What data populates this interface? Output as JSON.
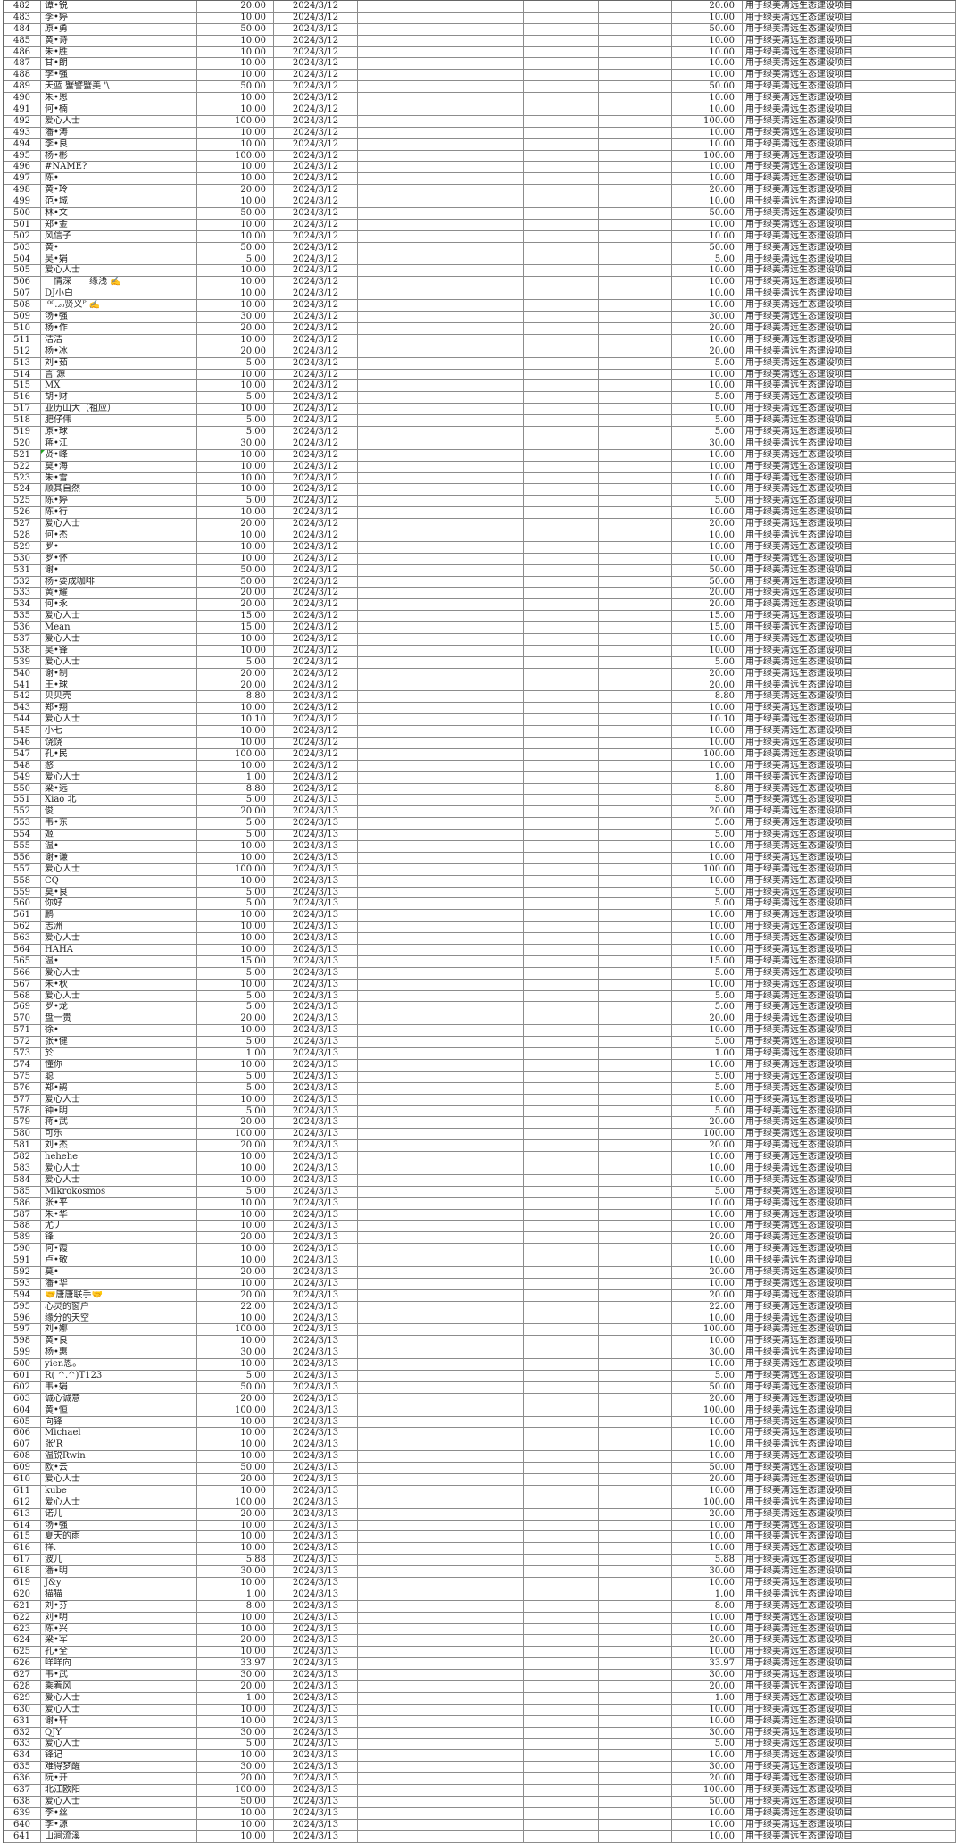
{
  "colors": {
    "grid_line": "#8c8c8c",
    "grid_line_dark": "#666666",
    "text": "#222222",
    "paper": "#ffffff",
    "error_marker_green": "#1fa51f"
  },
  "table": {
    "purpose_text": "用于绿美清远生态建设项目",
    "error_marker_row_no": "521",
    "fields": [
      "no",
      "name",
      "amount",
      "date"
    ],
    "rows": [
      [
        "482",
        "谭•锐",
        "20.00",
        "2024/3/12"
      ],
      [
        "483",
        "李•婷",
        "10.00",
        "2024/3/12"
      ],
      [
        "484",
        "原•勇",
        "50.00",
        "2024/3/12"
      ],
      [
        "485",
        "黄•诗",
        "10.00",
        "2024/3/12"
      ],
      [
        "486",
        "朱•胜",
        "10.00",
        "2024/3/12"
      ],
      [
        "487",
        "甘•朗",
        "10.00",
        "2024/3/12"
      ],
      [
        "488",
        "李•强",
        "10.00",
        "2024/3/12"
      ],
      [
        "489",
        "天蓝 蟹譬蟹美 '\\",
        "50.00",
        "2024/3/12"
      ],
      [
        "490",
        "朱•恩",
        "10.00",
        "2024/3/12"
      ],
      [
        "491",
        "何•楠",
        "10.00",
        "2024/3/12"
      ],
      [
        "492",
        "爱心人士",
        "100.00",
        "2024/3/12"
      ],
      [
        "493",
        "潘•涛",
        "10.00",
        "2024/3/12"
      ],
      [
        "494",
        "李•良",
        "10.00",
        "2024/3/12"
      ],
      [
        "495",
        "杨•彬",
        "100.00",
        "2024/3/12"
      ],
      [
        "496",
        "#NAME?",
        "10.00",
        "2024/3/12"
      ],
      [
        "497",
        "陈•",
        "10.00",
        "2024/3/12"
      ],
      [
        "498",
        "黄•玲",
        "20.00",
        "2024/3/12"
      ],
      [
        "499",
        "范•城",
        "10.00",
        "2024/3/12"
      ],
      [
        "500",
        "林•文",
        "50.00",
        "2024/3/12"
      ],
      [
        "501",
        "郑•金",
        "10.00",
        "2024/3/12"
      ],
      [
        "502",
        "风信子",
        "10.00",
        "2024/3/12"
      ],
      [
        "503",
        "黄•",
        "50.00",
        "2024/3/12"
      ],
      [
        "504",
        "吴•娟",
        "5.00",
        "2024/3/12"
      ],
      [
        "505",
        "爱心人士",
        "10.00",
        "2024/3/12"
      ],
      [
        "506",
        "　情深　　缘浅 ✍",
        "10.00",
        "2024/3/12"
      ],
      [
        "507",
        "DJ小白",
        "10.00",
        "2024/3/12"
      ],
      [
        "508",
        " ⁰⁰.₂₀贤义ᴾ ✍",
        "10.00",
        "2024/3/12"
      ],
      [
        "509",
        "汤•强",
        "30.00",
        "2024/3/12"
      ],
      [
        "510",
        "杨•作",
        "20.00",
        "2024/3/12"
      ],
      [
        "511",
        "洁洁",
        "10.00",
        "2024/3/12"
      ],
      [
        "512",
        "杨•冰",
        "20.00",
        "2024/3/12"
      ],
      [
        "513",
        "刘•茹",
        "5.00",
        "2024/3/12"
      ],
      [
        "514",
        "言 源",
        "10.00",
        "2024/3/12"
      ],
      [
        "515",
        "MX",
        "10.00",
        "2024/3/12"
      ],
      [
        "516",
        "胡•财",
        "5.00",
        "2024/3/12"
      ],
      [
        "517",
        "亚历山大（祖应）",
        "10.00",
        "2024/3/12"
      ],
      [
        "518",
        "肥仔伟",
        "5.00",
        "2024/3/12"
      ],
      [
        "519",
        "原•球",
        "5.00",
        "2024/3/12"
      ],
      [
        "520",
        "蒋•江",
        "30.00",
        "2024/3/12"
      ],
      [
        "521",
        "贤•峰",
        "10.00",
        "2024/3/12"
      ],
      [
        "522",
        "莫•海",
        "10.00",
        "2024/3/12"
      ],
      [
        "523",
        "朱•雪",
        "10.00",
        "2024/3/12"
      ],
      [
        "524",
        "顺其自然",
        "10.00",
        "2024/3/12"
      ],
      [
        "525",
        "陈•婷",
        "5.00",
        "2024/3/12"
      ],
      [
        "526",
        "陈•行",
        "10.00",
        "2024/3/12"
      ],
      [
        "527",
        "爱心人士",
        "20.00",
        "2024/3/12"
      ],
      [
        "528",
        "何•杰",
        "10.00",
        "2024/3/12"
      ],
      [
        "529",
        "罗•",
        "10.00",
        "2024/3/12"
      ],
      [
        "530",
        "罗•怀",
        "10.00",
        "2024/3/12"
      ],
      [
        "531",
        "谢•",
        "50.00",
        "2024/3/12"
      ],
      [
        "532",
        "杨•要成咖啡",
        "50.00",
        "2024/3/12"
      ],
      [
        "533",
        "黄•耀",
        "20.00",
        "2024/3/12"
      ],
      [
        "534",
        "何•永",
        "20.00",
        "2024/3/12"
      ],
      [
        "535",
        "爱心人士",
        "15.00",
        "2024/3/12"
      ],
      [
        "536",
        "Mean",
        "15.00",
        "2024/3/12"
      ],
      [
        "537",
        "爱心人士",
        "10.00",
        "2024/3/12"
      ],
      [
        "538",
        "吴•锋",
        "10.00",
        "2024/3/12"
      ],
      [
        "539",
        "爱心人士",
        "5.00",
        "2024/3/12"
      ],
      [
        "540",
        "谢•制",
        "20.00",
        "2024/3/12"
      ],
      [
        "541",
        "王•球",
        "20.00",
        "2024/3/12"
      ],
      [
        "542",
        "贝贝壳",
        "8.80",
        "2024/3/12"
      ],
      [
        "543",
        "郑•翔",
        "10.00",
        "2024/3/12"
      ],
      [
        "544",
        "爱心人士",
        "10.10",
        "2024/3/12"
      ],
      [
        "545",
        "小七",
        "10.00",
        "2024/3/12"
      ],
      [
        "546",
        "饶饶",
        "10.00",
        "2024/3/12"
      ],
      [
        "547",
        "孔•民",
        "100.00",
        "2024/3/12"
      ],
      [
        "548",
        "憨",
        "10.00",
        "2024/3/12"
      ],
      [
        "549",
        "爱心人士",
        "1.00",
        "2024/3/12"
      ],
      [
        "550",
        "梁•远",
        "8.80",
        "2024/3/12"
      ],
      [
        "551",
        "Xiao 北",
        "5.00",
        "2024/3/13"
      ],
      [
        "552",
        "俊",
        "20.00",
        "2024/3/13"
      ],
      [
        "553",
        "韦•东",
        "5.00",
        "2024/3/13"
      ],
      [
        "554",
        "姬",
        "5.00",
        "2024/3/13"
      ],
      [
        "555",
        "温•",
        "10.00",
        "2024/3/13"
      ],
      [
        "556",
        "谢•谦",
        "10.00",
        "2024/3/13"
      ],
      [
        "557",
        "爱心人士",
        "100.00",
        "2024/3/13"
      ],
      [
        "558",
        "CQ",
        "10.00",
        "2024/3/13"
      ],
      [
        "559",
        "莫•良",
        "5.00",
        "2024/3/13"
      ],
      [
        "560",
        "你好",
        "5.00",
        "2024/3/13"
      ],
      [
        "561",
        "鹏",
        "10.00",
        "2024/3/13"
      ],
      [
        "562",
        "志洲",
        "10.00",
        "2024/3/13"
      ],
      [
        "563",
        "爱心人士",
        "10.00",
        "2024/3/13"
      ],
      [
        "564",
        "HAHA",
        "10.00",
        "2024/3/13"
      ],
      [
        "565",
        "温•",
        "15.00",
        "2024/3/13"
      ],
      [
        "566",
        "爱心人士",
        "5.00",
        "2024/3/13"
      ],
      [
        "567",
        "朱•秋",
        "10.00",
        "2024/3/13"
      ],
      [
        "568",
        "爱心人士",
        "5.00",
        "2024/3/13"
      ],
      [
        "569",
        "罗•龙",
        "5.00",
        "2024/3/13"
      ],
      [
        "570",
        "盘一贵",
        "20.00",
        "2024/3/13"
      ],
      [
        "571",
        "徐•",
        "10.00",
        "2024/3/13"
      ],
      [
        "572",
        "张•健",
        "5.00",
        "2024/3/13"
      ],
      [
        "573",
        "於",
        "1.00",
        "2024/3/13"
      ],
      [
        "574",
        "懂你",
        "10.00",
        "2024/3/13"
      ],
      [
        "575",
        "聪",
        "5.00",
        "2024/3/13"
      ],
      [
        "576",
        "郑•鹃",
        "5.00",
        "2024/3/13"
      ],
      [
        "577",
        "爱心人士",
        "10.00",
        "2024/3/13"
      ],
      [
        "578",
        "钟•明",
        "5.00",
        "2024/3/13"
      ],
      [
        "579",
        "蒋•武",
        "20.00",
        "2024/3/13"
      ],
      [
        "580",
        "可乐",
        "100.00",
        "2024/3/13"
      ],
      [
        "581",
        "刘•杰",
        "20.00",
        "2024/3/13"
      ],
      [
        "582",
        "hehehe",
        "10.00",
        "2024/3/13"
      ],
      [
        "583",
        "爱心人士",
        "10.00",
        "2024/3/13"
      ],
      [
        "584",
        "爱心人士",
        "10.00",
        "2024/3/13"
      ],
      [
        "585",
        "Mikrokosmos",
        "5.00",
        "2024/3/13"
      ],
      [
        "586",
        "张•平",
        "10.00",
        "2024/3/13"
      ],
      [
        "587",
        "朱•华",
        "10.00",
        "2024/3/13"
      ],
      [
        "588",
        "尤丿",
        "10.00",
        "2024/3/13"
      ],
      [
        "589",
        "锋",
        "20.00",
        "2024/3/13"
      ],
      [
        "590",
        "何•霞",
        "10.00",
        "2024/3/13"
      ],
      [
        "591",
        "卢•敬",
        "10.00",
        "2024/3/13"
      ],
      [
        "592",
        "莫•",
        "20.00",
        "2024/3/13"
      ],
      [
        "593",
        "潘•华",
        "10.00",
        "2024/3/13"
      ],
      [
        "594",
        "🤝唐唐联手🤝",
        "20.00",
        "2024/3/13"
      ],
      [
        "595",
        "心灵的窗户",
        "22.00",
        "2024/3/13"
      ],
      [
        "596",
        "缘分的天空",
        "10.00",
        "2024/3/13"
      ],
      [
        "597",
        "刘•娜",
        "100.00",
        "2024/3/13"
      ],
      [
        "598",
        "黄•良",
        "10.00",
        "2024/3/13"
      ],
      [
        "599",
        "杨•惠",
        "30.00",
        "2024/3/13"
      ],
      [
        "600",
        "yien恩。",
        "10.00",
        "2024/3/13"
      ],
      [
        "601",
        "R( ^.^)T123",
        "5.00",
        "2024/3/13"
      ],
      [
        "602",
        "韦•娟",
        "50.00",
        "2024/3/13"
      ],
      [
        "603",
        "诚心诚意",
        "20.00",
        "2024/3/13"
      ],
      [
        "604",
        "黄•恒",
        "100.00",
        "2024/3/13"
      ],
      [
        "605",
        "向锋",
        "10.00",
        "2024/3/13"
      ],
      [
        "606",
        "Michael",
        "10.00",
        "2024/3/13"
      ],
      [
        "607",
        "张'R",
        "10.00",
        "2024/3/13"
      ],
      [
        "608",
        "温锐Rwin",
        "10.00",
        "2024/3/13"
      ],
      [
        "609",
        "欧•云",
        "50.00",
        "2024/3/13"
      ],
      [
        "610",
        "爱心人士",
        "20.00",
        "2024/3/13"
      ],
      [
        "611",
        "kube",
        "10.00",
        "2024/3/13"
      ],
      [
        "612",
        "爱心人士",
        "100.00",
        "2024/3/13"
      ],
      [
        "613",
        "诺儿",
        "20.00",
        "2024/3/13"
      ],
      [
        "614",
        "汤•强",
        "10.00",
        "2024/3/13"
      ],
      [
        "615",
        "夏天的雨",
        "10.00",
        "2024/3/13"
      ],
      [
        "616",
        "祥.",
        "10.00",
        "2024/3/13"
      ],
      [
        "617",
        "波儿",
        "5.88",
        "2024/3/13"
      ],
      [
        "618",
        "潘•明",
        "30.00",
        "2024/3/13"
      ],
      [
        "619",
        "J&y",
        "10.00",
        "2024/3/13"
      ],
      [
        "620",
        "猫猫",
        "1.00",
        "2024/3/13"
      ],
      [
        "621",
        "刘•芬",
        "8.00",
        "2024/3/13"
      ],
      [
        "622",
        "刘•明",
        "10.00",
        "2024/3/13"
      ],
      [
        "623",
        "陈•兴",
        "10.00",
        "2024/3/13"
      ],
      [
        "624",
        "梁•军",
        "20.00",
        "2024/3/13"
      ],
      [
        "625",
        "孔•全",
        "10.00",
        "2024/3/13"
      ],
      [
        "626",
        "咩咩向",
        "33.97",
        "2024/3/13"
      ],
      [
        "627",
        "韦•武",
        "30.00",
        "2024/3/13"
      ],
      [
        "628",
        "乘着风",
        "20.00",
        "2024/3/13"
      ],
      [
        "629",
        "爱心人士",
        "1.00",
        "2024/3/13"
      ],
      [
        "630",
        "爱心人士",
        "10.00",
        "2024/3/13"
      ],
      [
        "631",
        "谢•轩",
        "10.00",
        "2024/3/13"
      ],
      [
        "632",
        "QJY",
        "30.00",
        "2024/3/13"
      ],
      [
        "633",
        "爱心人士",
        "5.00",
        "2024/3/13"
      ],
      [
        "634",
        "锋记",
        "10.00",
        "2024/3/13"
      ],
      [
        "635",
        "难得梦醒",
        "30.00",
        "2024/3/13"
      ],
      [
        "636",
        "阮•开",
        "20.00",
        "2024/3/13"
      ],
      [
        "637",
        "北江欧阳",
        "100.00",
        "2024/3/13"
      ],
      [
        "638",
        "爱心人士",
        "50.00",
        "2024/3/13"
      ],
      [
        "639",
        "李•丝",
        "10.00",
        "2024/3/13"
      ],
      [
        "640",
        "李•源",
        "10.00",
        "2024/3/13"
      ],
      [
        "641",
        "山涧流溪",
        "10.00",
        "2024/3/13"
      ]
    ]
  }
}
